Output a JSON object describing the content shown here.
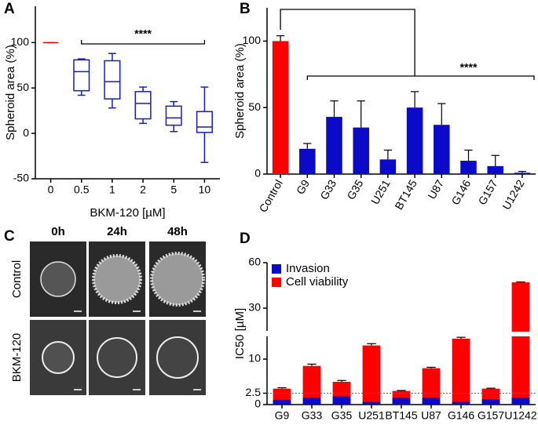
{
  "chart_data": [
    {
      "type": "box",
      "panel": "A",
      "categories": [
        "0",
        "0.5",
        "1",
        "2",
        "5",
        "10"
      ],
      "boxes": [
        {
          "min": 100,
          "q1": 100,
          "median": 100,
          "q3": 100,
          "max": 100
        },
        {
          "min": 42,
          "q1": 47,
          "median": 68,
          "q3": 81,
          "max": 82
        },
        {
          "min": 28,
          "q1": 38,
          "median": 57,
          "q3": 80,
          "max": 88
        },
        {
          "min": 11,
          "q1": 16,
          "median": 33,
          "q3": 46,
          "max": 51
        },
        {
          "min": 2,
          "q1": 9,
          "median": 17,
          "q3": 30,
          "max": 35
        },
        {
          "min": -32,
          "q1": 1,
          "median": 7,
          "q3": 24,
          "max": 51
        }
      ],
      "colors": [
        "#ff0000",
        "#1a1ac8",
        "#1a1ac8",
        "#1a1ac8",
        "#1a1ac8",
        "#1a1ac8"
      ],
      "ylim": [
        -50,
        140
      ],
      "yticks": [
        -50,
        0,
        50,
        100
      ],
      "ylabel": "Spheroid area (%)",
      "xlabel": "BKM-120 [µM]",
      "annotation": "****"
    },
    {
      "type": "bar",
      "panel": "B",
      "categories": [
        "Control",
        "G9",
        "G33",
        "G35",
        "U251",
        "BT145",
        "U87",
        "G146",
        "G157",
        "U1242"
      ],
      "values": [
        100,
        19,
        43,
        35,
        11,
        50,
        37,
        10,
        6,
        1
      ],
      "errors": [
        4,
        4,
        12,
        20,
        7,
        12,
        16,
        8,
        8,
        1
      ],
      "colors": [
        "#ff0000",
        "#0a0ac8",
        "#0a0ac8",
        "#0a0ac8",
        "#0a0ac8",
        "#0a0ac8",
        "#0a0ac8",
        "#0a0ac8",
        "#0a0ac8",
        "#0a0ac8"
      ],
      "ylim": [
        0,
        125
      ],
      "yticks": [
        0,
        50,
        100
      ],
      "ylabel": "Spheroid area (%)",
      "annotation": "****"
    },
    {
      "type": "bar",
      "panel": "D",
      "categories": [
        "G9",
        "G33",
        "G35",
        "U251",
        "BT145",
        "U87",
        "G146",
        "G157",
        "U1242"
      ],
      "series": [
        {
          "name": "Invasion",
          "color": "#0a0ac8",
          "values": [
            1,
            1.5,
            1.8,
            0.6,
            1.5,
            1.5,
            0.6,
            1.2,
            1.5
          ]
        },
        {
          "name": "Cell viability",
          "color": "#ff0000",
          "values": [
            3.5,
            8.5,
            5,
            13,
            3,
            8,
            14.5,
            3.5,
            47
          ],
          "errors": [
            0.2,
            0.4,
            0.3,
            0.4,
            0.1,
            0.2,
            0.3,
            0.1,
            0.3
          ]
        }
      ],
      "ylim": [
        0,
        60
      ],
      "ybreak": 15,
      "yticks": [
        0,
        2.5,
        10,
        30,
        60
      ],
      "dashed_line": 2.5,
      "ylabel": "IC50 [µM]",
      "legend": "upper left"
    }
  ],
  "image_panel": {
    "panel": "C",
    "columns": [
      "0h",
      "24h",
      "48h"
    ],
    "rows": [
      "Control",
      "BKM-120"
    ]
  }
}
